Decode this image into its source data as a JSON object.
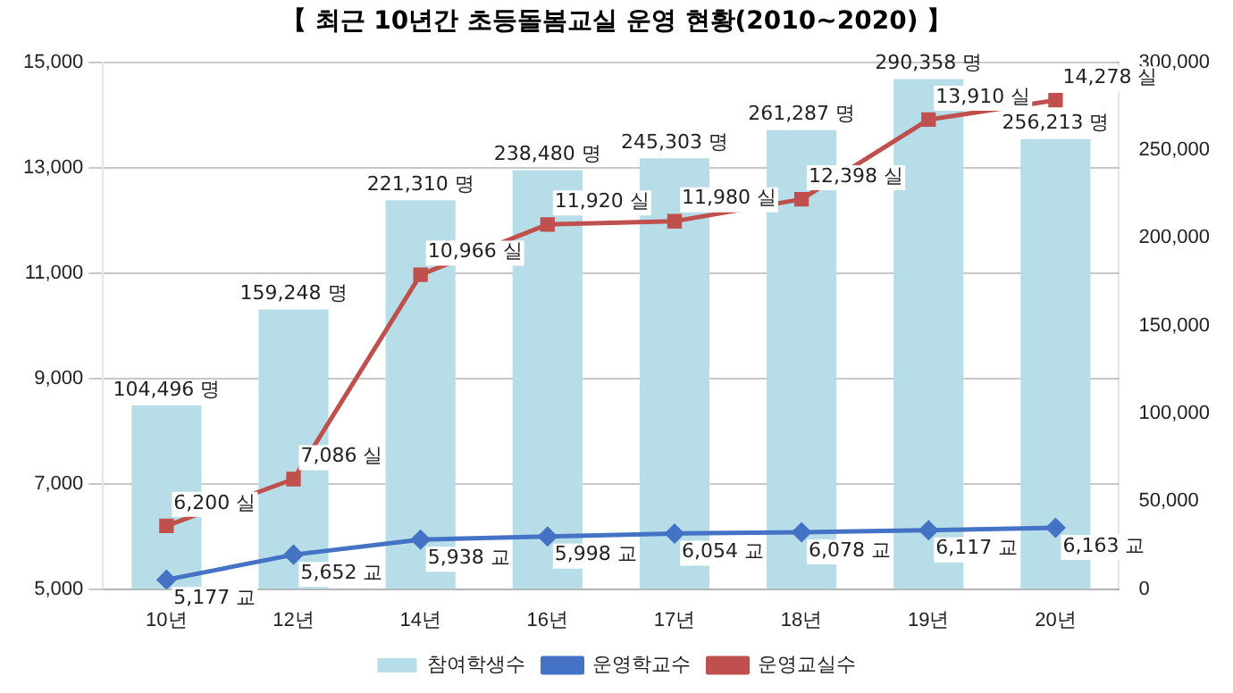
{
  "chart_data": {
    "type": "bar",
    "title": "【 최근 10년간 초등돌봄교실 운영 현황(2010~2020) 】",
    "categories": [
      "10년",
      "12년",
      "14년",
      "16년",
      "17년",
      "18년",
      "19년",
      "20년"
    ],
    "series": [
      {
        "name": "참여학생수",
        "axis": "y2",
        "color": "#b7dde8",
        "values": [
          104496,
          159248,
          221310,
          238480,
          245303,
          261287,
          290358,
          256213
        ],
        "value_labels": [
          "104,496 명",
          "159,248 명",
          "221,310 명",
          "238,480 명",
          "245,303 명",
          "261,287 명",
          "290,358 명",
          "256,213 명"
        ]
      },
      {
        "name": "운영학교수",
        "type": "line",
        "axis": "y",
        "color": "#4472c4",
        "marker": "diamond",
        "values": [
          5177,
          5652,
          5938,
          5998,
          6054,
          6078,
          6117,
          6163
        ],
        "value_labels": [
          "5,177 교",
          "5,652 교",
          "5,938 교",
          "5,998 교",
          "6,054 교",
          "6,078 교",
          "6,117 교",
          "6,163 교"
        ]
      },
      {
        "name": "운영교실수",
        "type": "line",
        "axis": "y",
        "color": "#c0504d",
        "marker": "square",
        "values": [
          6200,
          7086,
          10966,
          11920,
          11980,
          12398,
          13910,
          14278
        ],
        "value_labels": [
          "6,200 실",
          "7,086 실",
          "10,966 실",
          "11,920 실",
          "11,980 실",
          "12,398 실",
          "13,910 실",
          "14,278 실"
        ]
      }
    ],
    "ylim": [
      5000,
      15000
    ],
    "yticks": [
      {
        "value": 5000,
        "label": "5,000"
      },
      {
        "value": 7000,
        "label": "7,000"
      },
      {
        "value": 9000,
        "label": "9,000"
      },
      {
        "value": 11000,
        "label": "11,000"
      },
      {
        "value": 13000,
        "label": "13,000"
      },
      {
        "value": 15000,
        "label": "15,000"
      }
    ],
    "y2lim": [
      0,
      300000
    ],
    "y2ticks": [
      0,
      {
        "value": 50000,
        "label": "50,000"
      },
      {
        "value": 100000,
        "label": "100,000"
      },
      {
        "value": 150000,
        "label": "150,000"
      },
      {
        "value": 200000,
        "label": "200,000"
      },
      {
        "value": 250000,
        "label": "250,000"
      },
      {
        "value": 300000,
        "label": "300,000"
      }
    ],
    "grid": "y",
    "legend": "bottom"
  }
}
